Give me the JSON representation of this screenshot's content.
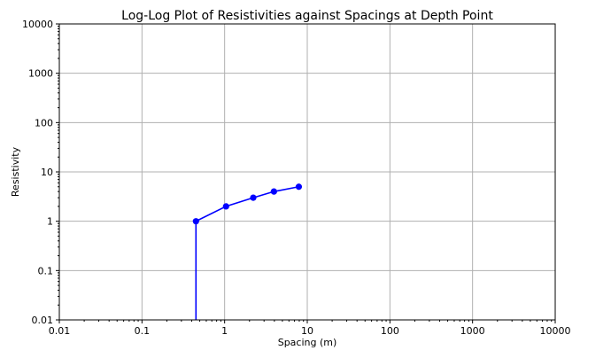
{
  "chart_data": {
    "type": "line",
    "title": "Log-Log Plot of Resistivities against Spacings at Depth Point",
    "xlabel": "Spacing (m)",
    "ylabel": "Resistivity",
    "xscale": "log",
    "yscale": "log",
    "xlim": [
      0.01,
      10000
    ],
    "ylim": [
      0.01,
      10000
    ],
    "xticks": [
      "0.01",
      "0.1",
      "1",
      "10",
      "100",
      "1000",
      "10000"
    ],
    "yticks": [
      "0.01",
      "0.1",
      "1",
      "10",
      "100",
      "1000",
      "10000"
    ],
    "grid": true,
    "series": [
      {
        "color": "#0000ff",
        "marker": "circle",
        "x": [
          0.45,
          0.45,
          1.04,
          2.22,
          3.95,
          7.9
        ],
        "y": [
          0,
          1,
          2,
          3,
          4,
          5
        ]
      }
    ]
  }
}
